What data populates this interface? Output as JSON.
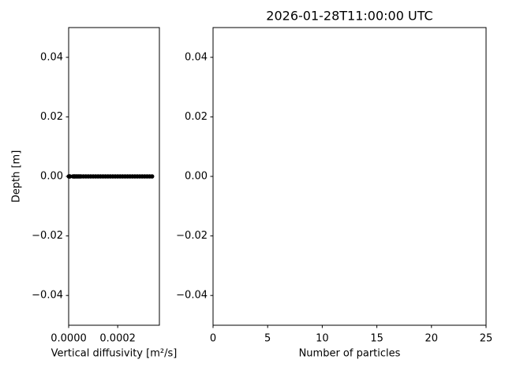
{
  "chart_data": [
    {
      "type": "scatter",
      "xlabel": "Vertical diffusivity [m²/s]",
      "ylabel": "Depth [m]",
      "x": [
        1e-06,
        3e-06,
        5e-06,
        1.8e-05,
        2.2e-05,
        2.5e-05,
        3e-05,
        3.5e-05,
        4e-05,
        4.5e-05,
        5e-05,
        6e-05,
        7e-05,
        8e-05,
        9e-05,
        0.0001,
        0.00011,
        0.00012,
        0.00013,
        0.00014,
        0.00015,
        0.00016,
        0.00017,
        0.00018,
        0.00019,
        0.0002,
        0.00021,
        0.00022,
        0.00023,
        0.00024,
        0.00025,
        0.00026,
        0.00027,
        0.00028,
        0.00029,
        0.0003,
        0.00031,
        0.00032,
        0.00033,
        0.00034
      ],
      "values": [
        0,
        0,
        0,
        0,
        0,
        0,
        0,
        0,
        0,
        0,
        0,
        0,
        0,
        0,
        0,
        0,
        0,
        0,
        0,
        0,
        0,
        0,
        0,
        0,
        0,
        0,
        0,
        0,
        0,
        0,
        0,
        0,
        0,
        0,
        0,
        0,
        0,
        0,
        0,
        0
      ],
      "color": "#000000",
      "xlim": [
        0,
        0.00037
      ],
      "xticks": [
        {
          "value": 0,
          "label": "0.0000"
        },
        {
          "value": 0.0002,
          "label": "0.0002"
        }
      ],
      "ylim": [
        -0.05,
        0.05
      ],
      "yticks": [
        {
          "value": -0.04,
          "label": "−0.04"
        },
        {
          "value": -0.02,
          "label": "−0.02"
        },
        {
          "value": 0,
          "label": "0.00"
        },
        {
          "value": 0.02,
          "label": "0.02"
        },
        {
          "value": 0.04,
          "label": "0.04"
        }
      ]
    },
    {
      "type": "bar",
      "title": "2026-01-28T11:00:00 UTC",
      "xlabel": "Number of particles",
      "xlim": [
        0,
        25
      ],
      "xticks": [
        0,
        5,
        10,
        15,
        20,
        25
      ],
      "ylim": [
        -0.05,
        0.05
      ],
      "yticks": [
        {
          "value": -0.04,
          "label": "−0.04"
        },
        {
          "value": -0.02,
          "label": "−0.02"
        },
        {
          "value": 0,
          "label": "0.00"
        },
        {
          "value": 0.02,
          "label": "0.02"
        },
        {
          "value": 0.04,
          "label": "0.04"
        }
      ]
    }
  ]
}
